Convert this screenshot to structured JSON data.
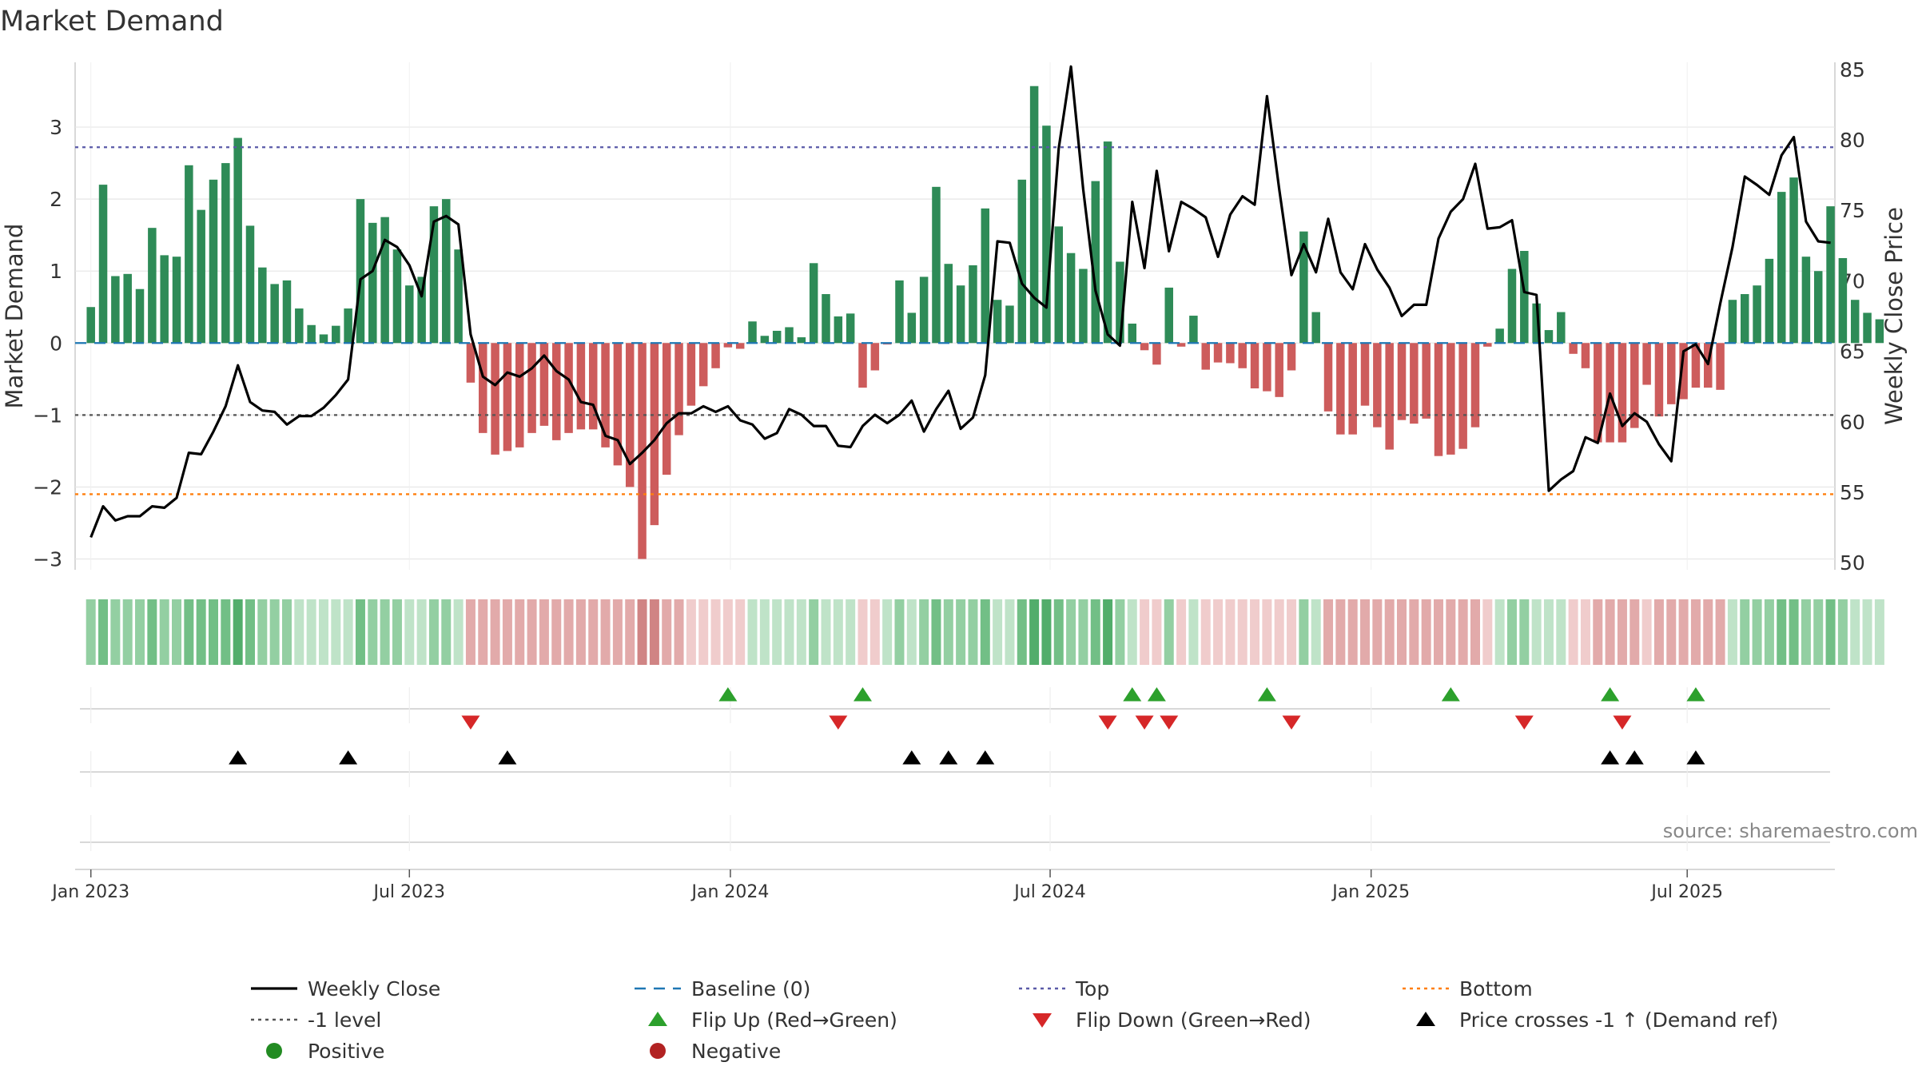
{
  "chart_data": {
    "type": "bar",
    "title": "Market Demand",
    "ylabel": "Market Demand",
    "y2label": "Weekly Close Price",
    "ylim": [
      -3.15,
      3.9
    ],
    "y2lim": [
      49.5,
      85.5
    ],
    "yticks": [
      3,
      2,
      1,
      0,
      -1,
      -2,
      -3
    ],
    "ytick_labels": [
      "3",
      "2",
      "1",
      "0",
      "−1",
      "−2",
      "−3"
    ],
    "y2ticks": [
      85,
      80,
      75,
      70,
      65,
      60,
      55,
      50
    ],
    "xticks": [
      {
        "label": "Jan 2023",
        "week": 0
      },
      {
        "label": "Jul 2023",
        "week": 26
      },
      {
        "label": "Jan 2024",
        "week": 52.2
      },
      {
        "label": "Jul 2024",
        "week": 78.3
      },
      {
        "label": "Jan 2025",
        "week": 104.5
      },
      {
        "label": "Jul 2025",
        "week": 130.3
      }
    ],
    "reference_lines": {
      "top": 2.72,
      "bottom": -2.1,
      "minus_one": -1,
      "baseline": 0
    },
    "demand": [
      0.5,
      2.2,
      0.93,
      0.96,
      0.75,
      1.6,
      1.22,
      1.2,
      2.47,
      1.85,
      2.27,
      2.5,
      2.85,
      1.63,
      1.05,
      0.82,
      0.87,
      0.48,
      0.25,
      0.12,
      0.24,
      0.48,
      2.0,
      1.67,
      1.75,
      1.3,
      0.8,
      0.92,
      1.9,
      2.0,
      1.3,
      -0.55,
      -1.25,
      -1.55,
      -1.5,
      -1.45,
      -1.25,
      -1.15,
      -1.35,
      -1.25,
      -1.2,
      -1.2,
      -1.45,
      -1.7,
      -2.0,
      -3.0,
      -2.53,
      -1.83,
      -1.28,
      -0.87,
      -0.6,
      -0.35,
      -0.06,
      -0.08,
      0.3,
      0.1,
      0.17,
      0.22,
      0.08,
      1.11,
      0.68,
      0.37,
      0.41,
      -0.62,
      -0.38,
      -0.02,
      0.87,
      0.42,
      0.92,
      2.17,
      1.1,
      0.8,
      1.08,
      1.87,
      0.6,
      0.52,
      2.27,
      3.57,
      3.02,
      1.62,
      1.25,
      1.03,
      2.25,
      2.8,
      1.13,
      0.27,
      -0.1,
      -0.3,
      0.77,
      -0.05,
      0.38,
      -0.37,
      -0.27,
      -0.28,
      -0.35,
      -0.63,
      -0.67,
      -0.75,
      -0.38,
      1.55,
      0.43,
      -0.95,
      -1.27,
      -1.27,
      -0.87,
      -1.17,
      -1.48,
      -1.07,
      -1.12,
      -1.05,
      -1.57,
      -1.55,
      -1.47,
      -1.17,
      -0.05,
      0.2,
      1.03,
      1.28,
      0.55,
      0.18,
      0.43,
      -0.15,
      -0.35,
      -1.38,
      -1.38,
      -1.38,
      -1.18,
      -0.58,
      -1.02,
      -0.85,
      -0.78,
      -0.62,
      -0.62,
      -0.65,
      0.6,
      0.68,
      0.8,
      1.17,
      2.1,
      2.3,
      1.2,
      1.0,
      1.9,
      1.18,
      0.6,
      0.42,
      0.33
    ],
    "close": [
      51.8,
      54.0,
      53.0,
      53.3,
      53.3,
      54.0,
      53.9,
      54.6,
      57.8,
      57.7,
      59.3,
      61.1,
      64.0,
      61.4,
      60.8,
      60.7,
      59.8,
      60.4,
      60.4,
      61.0,
      61.9,
      63.0,
      70.1,
      70.7,
      72.9,
      72.4,
      71.1,
      68.9,
      74.2,
      74.6,
      74.0,
      66.2,
      63.2,
      62.6,
      63.5,
      63.2,
      63.8,
      64.7,
      63.6,
      63.0,
      61.4,
      61.2,
      59.0,
      58.7,
      57.0,
      57.8,
      58.7,
      59.9,
      60.6,
      60.6,
      61.1,
      60.7,
      61.1,
      60.1,
      59.8,
      58.8,
      59.2,
      60.9,
      60.5,
      59.7,
      59.7,
      58.3,
      58.2,
      59.7,
      60.5,
      59.9,
      60.5,
      61.5,
      59.3,
      60.9,
      62.2,
      59.5,
      60.3,
      63.3,
      72.8,
      72.7,
      69.8,
      68.8,
      68.1,
      79.4,
      85.2,
      76.5,
      69.3,
      66.2,
      65.4,
      75.6,
      70.9,
      77.8,
      72.1,
      75.6,
      75.1,
      74.5,
      71.7,
      74.7,
      76.0,
      75.4,
      83.1,
      76.5,
      70.4,
      72.6,
      70.6,
      74.4,
      70.6,
      69.4,
      72.6,
      70.8,
      69.5,
      67.5,
      68.3,
      68.3,
      73.0,
      74.9,
      75.8,
      78.3,
      73.7,
      73.8,
      74.3,
      69.2,
      69.0,
      55.1,
      55.9,
      56.5,
      58.9,
      58.5,
      62.0,
      59.7,
      60.6,
      60.0,
      58.4,
      57.2,
      65.0,
      65.5,
      64.1,
      68.4,
      72.4,
      77.4,
      76.8,
      76.1,
      78.9,
      80.2,
      74.2,
      72.8,
      72.7
    ],
    "heat_levels": [
      2,
      3,
      2,
      2,
      2,
      3,
      2,
      2,
      3,
      3,
      3,
      3,
      4,
      3,
      2,
      2,
      2,
      1,
      1,
      1,
      1,
      1,
      3,
      2,
      2,
      2,
      1,
      1,
      2,
      2,
      1,
      -2,
      -2,
      -2,
      -2,
      -2,
      -2,
      -2,
      -2,
      -2,
      -2,
      -2,
      -2,
      -2,
      -2,
      -3,
      -3,
      -2,
      -2,
      -1,
      -1,
      -1,
      -1,
      -1,
      1,
      1,
      1,
      1,
      1,
      2,
      1,
      1,
      1,
      -1,
      -1,
      1,
      2,
      1,
      2,
      3,
      2,
      2,
      2,
      3,
      1,
      1,
      3,
      4,
      4,
      3,
      2,
      2,
      3,
      4,
      2,
      1,
      -1,
      -1,
      2,
      -1,
      1,
      -1,
      -1,
      -1,
      -1,
      -1,
      -1,
      -1,
      -1,
      2,
      1,
      -2,
      -2,
      -2,
      -2,
      -2,
      -2,
      -2,
      -2,
      -2,
      -2,
      -2,
      -2,
      -2,
      -1,
      1,
      2,
      2,
      1,
      1,
      1,
      -1,
      -1,
      -2,
      -2,
      -2,
      -2,
      -1,
      -2,
      -2,
      -2,
      -2,
      -2,
      -2,
      1,
      2,
      2,
      2,
      3,
      3,
      2,
      2,
      3,
      2,
      1,
      1,
      1
    ],
    "flip_up_weeks": [
      52,
      63,
      85,
      87,
      96,
      111,
      124,
      131
    ],
    "flip_down_weeks": [
      31,
      61,
      83,
      86,
      88,
      98,
      117,
      125
    ],
    "price_cross_weeks": [
      12,
      21,
      34,
      67,
      70,
      73,
      124,
      126,
      131
    ],
    "source": "source: sharemaestro.com",
    "legend": [
      {
        "label": "Weekly Close",
        "marker": "line-solid",
        "color": "#000000"
      },
      {
        "label": "Baseline (0)",
        "marker": "line-dashed",
        "color": "#1f77b4"
      },
      {
        "label": "Top",
        "marker": "line-dotted",
        "color": "#5a5aa8"
      },
      {
        "label": "Bottom",
        "marker": "line-dotted",
        "color": "#ff7f0e"
      },
      {
        "label": "-1 level",
        "marker": "line-dotted",
        "color": "#555555"
      },
      {
        "label": "Flip Up (Red→Green)",
        "marker": "triangle-up",
        "color": "#2ca02c"
      },
      {
        "label": "Flip Down (Green→Red)",
        "marker": "triangle-down",
        "color": "#d62728"
      },
      {
        "label": "Price crosses -1 ↑ (Demand ref)",
        "marker": "triangle-up",
        "color": "#000000"
      },
      {
        "label": "Positive",
        "marker": "circle",
        "color": "#228b22"
      },
      {
        "label": "Negative",
        "marker": "circle",
        "color": "#b22222"
      }
    ],
    "colors": {
      "positive_bar": "#2e8b57",
      "negative_bar": "#cd5c5c",
      "close_line": "#000000",
      "grid": "#e6e6e6"
    }
  }
}
